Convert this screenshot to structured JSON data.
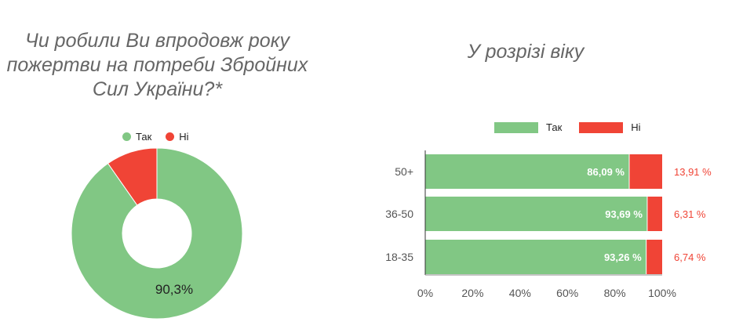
{
  "colors": {
    "yes": "#81c784",
    "no": "#f04436",
    "axis": "#333333",
    "text": "#555555"
  },
  "chart_data": [
    {
      "type": "pie",
      "title": "Чи робили Ви впродовж року пожертви на потреби Збройних Сил України?*",
      "labels": [
        "Так",
        "Ні"
      ],
      "values": [
        90.3,
        9.7
      ],
      "data_labels": [
        "90,3%"
      ],
      "legend": "top"
    },
    {
      "type": "bar",
      "orientation": "horizontal",
      "stacked": true,
      "title": "У розрізі віку",
      "categories": [
        "50+",
        "36-50",
        "18-35"
      ],
      "series": [
        {
          "name": "Так",
          "values": [
            86.09,
            93.69,
            93.26
          ],
          "labels": [
            "86,09 %",
            "93,69 %",
            "93,26 %"
          ]
        },
        {
          "name": "Ні",
          "values": [
            13.91,
            6.31,
            6.74
          ],
          "labels": [
            "13,91 %",
            "6,31 %",
            "6,74 %"
          ]
        }
      ],
      "xlim": [
        0,
        100
      ],
      "xticks": [
        "0%",
        "20%",
        "40%",
        "60%",
        "80%",
        "100%"
      ],
      "legend": "top"
    }
  ]
}
